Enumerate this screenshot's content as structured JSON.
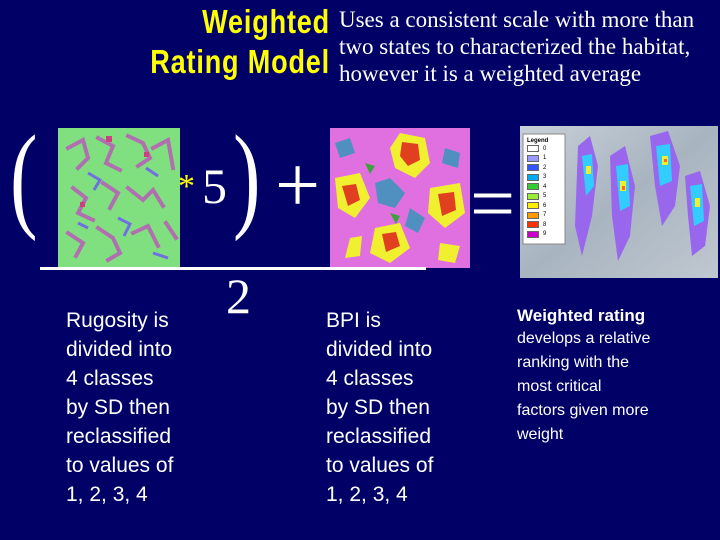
{
  "slide": {
    "title_line1": "Weighted",
    "title_line2": "Rating Model",
    "subtitle_line1": "Uses a consistent scale with more than",
    "subtitle_line2": "two states to characterized the habitat,",
    "subtitle_line3": "however it is a weighted average"
  },
  "formula": {
    "open_paren": "(",
    "multiply": "*",
    "weight": "5",
    "close_paren": ")",
    "plus": "+",
    "equals": "=",
    "divisor": "2"
  },
  "rugosity": {
    "lines": [
      "Rugosity is",
      "divided into",
      "4 classes",
      "by SD then",
      "reclassified",
      "to values of",
      "1, 2, 3, 4"
    ]
  },
  "bpi": {
    "lines": [
      "BPI is",
      "divided into",
      "4 classes",
      "by SD then",
      "reclassified",
      "to values of",
      "1, 2, 3, 4"
    ]
  },
  "weighted": {
    "title": "Weighted rating",
    "lines": [
      "develops a relative",
      "ranking with the",
      "most critical",
      "factors given more",
      "weight"
    ]
  },
  "legend": {
    "title": "Legend",
    "entries": [
      "0",
      "1",
      "2",
      "3",
      "4",
      "5",
      "6",
      "7",
      "8",
      "9"
    ],
    "colors": [
      "#ffffff",
      "#9999ff",
      "#3355ff",
      "#00aaee",
      "#33cc33",
      "#99ee33",
      "#ffee00",
      "#ff9900",
      "#ff3300",
      "#cc00cc"
    ]
  },
  "colors": {
    "background": "#000066",
    "title": "#ffff00",
    "text": "#ffffff",
    "rugosity_base": "#80e080",
    "bpi_base": "#e070e0"
  }
}
